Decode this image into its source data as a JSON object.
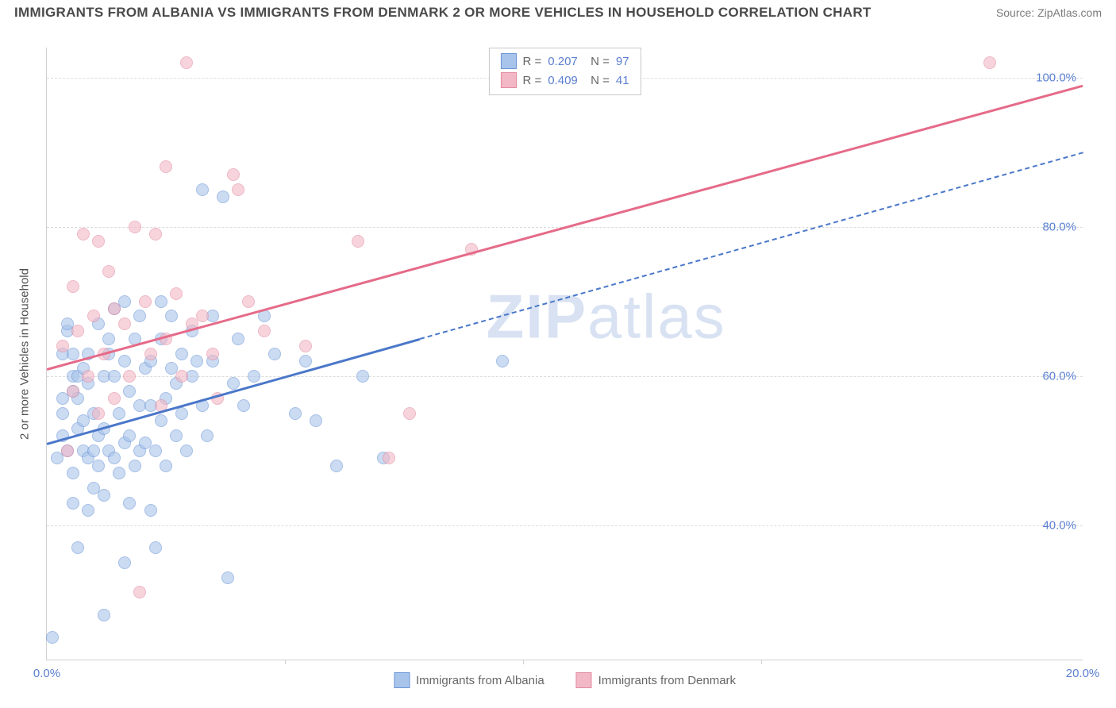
{
  "header": {
    "title": "IMMIGRANTS FROM ALBANIA VS IMMIGRANTS FROM DENMARK 2 OR MORE VEHICLES IN HOUSEHOLD CORRELATION CHART",
    "source": "Source: ZipAtlas.com"
  },
  "chart": {
    "type": "scatter",
    "ylabel": "2 or more Vehicles in Household",
    "xlim": [
      0,
      20
    ],
    "ylim": [
      22,
      104
    ],
    "yticks": [
      40,
      60,
      80,
      100
    ],
    "ytick_labels": [
      "40.0%",
      "60.0%",
      "80.0%",
      "100.0%"
    ],
    "xticks": [
      0,
      20
    ],
    "xtick_labels": [
      "0.0%",
      "20.0%"
    ],
    "xtick_minor": [
      4.6,
      9.2,
      13.8
    ],
    "grid_color": "#dcdcdc",
    "axis_color": "#d0d0d0",
    "background_color": "#ffffff",
    "tick_label_color": "#5b7fd1",
    "watermark": "ZIPatlas",
    "point_radius": 8,
    "point_opacity": 0.6,
    "series": [
      {
        "name": "Immigrants from Albania",
        "fill": "#a8c4eb",
        "stroke": "#6b95d6",
        "R": "0.207",
        "N": "97",
        "trend": {
          "x1": 0,
          "y1": 51,
          "x2": 20,
          "y2": 90,
          "solid_until_x": 7.2,
          "color": "#4a77c9",
          "width": 2.5
        },
        "points": [
          [
            0.1,
            25
          ],
          [
            0.2,
            49
          ],
          [
            0.3,
            52
          ],
          [
            0.3,
            55
          ],
          [
            0.3,
            63
          ],
          [
            0.3,
            57
          ],
          [
            0.4,
            50
          ],
          [
            0.4,
            66
          ],
          [
            0.4,
            67
          ],
          [
            0.5,
            47
          ],
          [
            0.5,
            43
          ],
          [
            0.5,
            58
          ],
          [
            0.5,
            60
          ],
          [
            0.5,
            63
          ],
          [
            0.6,
            37
          ],
          [
            0.6,
            53
          ],
          [
            0.6,
            60
          ],
          [
            0.6,
            57
          ],
          [
            0.7,
            50
          ],
          [
            0.7,
            54
          ],
          [
            0.7,
            61
          ],
          [
            0.8,
            49
          ],
          [
            0.8,
            63
          ],
          [
            0.8,
            59
          ],
          [
            0.8,
            42
          ],
          [
            0.9,
            50
          ],
          [
            0.9,
            55
          ],
          [
            0.9,
            45
          ],
          [
            1.0,
            48
          ],
          [
            1.0,
            52
          ],
          [
            1.0,
            67
          ],
          [
            1.1,
            28
          ],
          [
            1.1,
            53
          ],
          [
            1.1,
            60
          ],
          [
            1.1,
            44
          ],
          [
            1.2,
            65
          ],
          [
            1.2,
            50
          ],
          [
            1.2,
            63
          ],
          [
            1.3,
            49
          ],
          [
            1.3,
            69
          ],
          [
            1.3,
            60
          ],
          [
            1.4,
            55
          ],
          [
            1.4,
            47
          ],
          [
            1.5,
            35
          ],
          [
            1.5,
            51
          ],
          [
            1.5,
            62
          ],
          [
            1.5,
            70
          ],
          [
            1.6,
            52
          ],
          [
            1.6,
            58
          ],
          [
            1.6,
            43
          ],
          [
            1.7,
            48
          ],
          [
            1.7,
            65
          ],
          [
            1.8,
            56
          ],
          [
            1.8,
            50
          ],
          [
            1.8,
            68
          ],
          [
            1.9,
            51
          ],
          [
            1.9,
            61
          ],
          [
            2.0,
            42
          ],
          [
            2.0,
            62
          ],
          [
            2.0,
            56
          ],
          [
            2.1,
            37
          ],
          [
            2.1,
            50
          ],
          [
            2.2,
            54
          ],
          [
            2.2,
            70
          ],
          [
            2.2,
            65
          ],
          [
            2.3,
            48
          ],
          [
            2.3,
            57
          ],
          [
            2.4,
            61
          ],
          [
            2.4,
            68
          ],
          [
            2.5,
            52
          ],
          [
            2.5,
            59
          ],
          [
            2.6,
            55
          ],
          [
            2.6,
            63
          ],
          [
            2.7,
            50
          ],
          [
            2.8,
            60
          ],
          [
            2.8,
            66
          ],
          [
            2.9,
            62
          ],
          [
            3.0,
            85
          ],
          [
            3.0,
            56
          ],
          [
            3.1,
            52
          ],
          [
            3.2,
            68
          ],
          [
            3.2,
            62
          ],
          [
            3.4,
            84
          ],
          [
            3.5,
            33
          ],
          [
            3.6,
            59
          ],
          [
            3.7,
            65
          ],
          [
            3.8,
            56
          ],
          [
            4.0,
            60
          ],
          [
            4.2,
            68
          ],
          [
            4.4,
            63
          ],
          [
            4.8,
            55
          ],
          [
            5.0,
            62
          ],
          [
            5.2,
            54
          ],
          [
            5.6,
            48
          ],
          [
            6.1,
            60
          ],
          [
            6.5,
            49
          ],
          [
            8.8,
            62
          ]
        ]
      },
      {
        "name": "Immigrants from Denmark",
        "fill": "#f2b8c6",
        "stroke": "#e38aa0",
        "R": "0.409",
        "N": "41",
        "trend": {
          "x1": 0,
          "y1": 61,
          "x2": 20,
          "y2": 99,
          "solid_until_x": 20,
          "color": "#e56b89",
          "width": 2.5
        },
        "points": [
          [
            0.3,
            64
          ],
          [
            0.4,
            50
          ],
          [
            0.5,
            72
          ],
          [
            0.5,
            58
          ],
          [
            0.6,
            66
          ],
          [
            0.7,
            79
          ],
          [
            0.8,
            60
          ],
          [
            0.9,
            68
          ],
          [
            1.0,
            78
          ],
          [
            1.0,
            55
          ],
          [
            1.1,
            63
          ],
          [
            1.2,
            74
          ],
          [
            1.3,
            57
          ],
          [
            1.3,
            69
          ],
          [
            1.5,
            67
          ],
          [
            1.6,
            60
          ],
          [
            1.7,
            80
          ],
          [
            1.8,
            31
          ],
          [
            1.9,
            70
          ],
          [
            2.0,
            63
          ],
          [
            2.1,
            79
          ],
          [
            2.2,
            56
          ],
          [
            2.3,
            65
          ],
          [
            2.3,
            88
          ],
          [
            2.5,
            71
          ],
          [
            2.6,
            60
          ],
          [
            2.7,
            102
          ],
          [
            2.8,
            67
          ],
          [
            3.0,
            68
          ],
          [
            3.2,
            63
          ],
          [
            3.3,
            57
          ],
          [
            3.6,
            87
          ],
          [
            3.7,
            85
          ],
          [
            3.9,
            70
          ],
          [
            4.2,
            66
          ],
          [
            5.0,
            64
          ],
          [
            6.0,
            78
          ],
          [
            6.6,
            49
          ],
          [
            7.0,
            55
          ],
          [
            8.2,
            77
          ],
          [
            18.2,
            102
          ]
        ]
      }
    ]
  },
  "legend_bottom": [
    {
      "label": "Immigrants from Albania",
      "fill": "#a8c4eb",
      "stroke": "#6b95d6"
    },
    {
      "label": "Immigrants from Denmark",
      "fill": "#f2b8c6",
      "stroke": "#e38aa0"
    }
  ]
}
